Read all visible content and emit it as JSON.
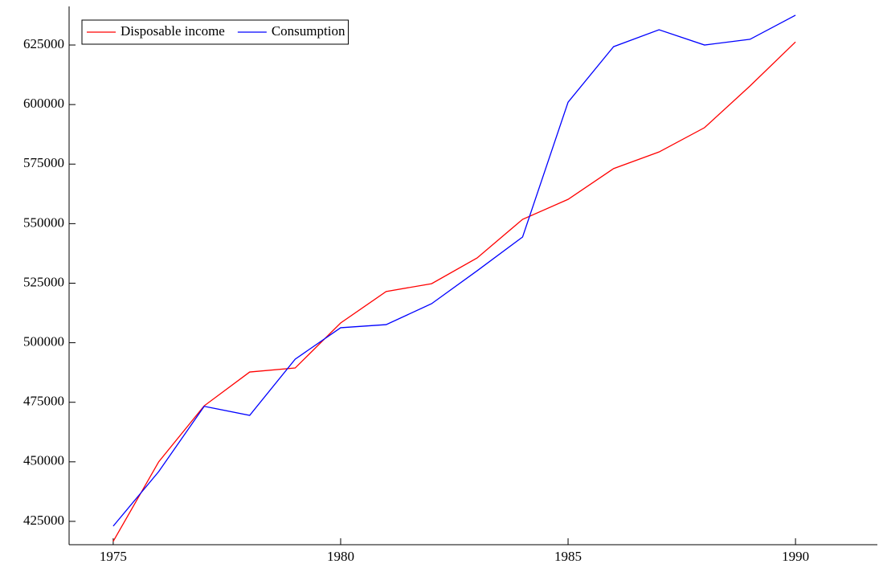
{
  "chart_data": {
    "type": "line",
    "x": [
      1975,
      1976,
      1977,
      1978,
      1979,
      1980,
      1981,
      1982,
      1983,
      1984,
      1985,
      1986,
      1987,
      1988,
      1989,
      1990
    ],
    "series": [
      {
        "name": "Disposable income",
        "color": "#ff0000",
        "values": [
          416600,
          450000,
          473500,
          487700,
          489400,
          508300,
          521500,
          524800,
          535600,
          551800,
          560200,
          573100,
          580100,
          590300,
          607800,
          626300
        ]
      },
      {
        "name": "Consumption",
        "color": "#0000ff",
        "values": [
          423000,
          445900,
          473300,
          469500,
          493100,
          506300,
          507600,
          516400,
          530200,
          544400,
          601000,
          624300,
          631400,
          625000,
          627400,
          637500
        ]
      }
    ],
    "xlim": [
      1974.03,
      1991.8
    ],
    "xticks": [
      1975,
      1980,
      1985,
      1990
    ],
    "ylim": [
      415200,
      641200
    ],
    "yticks": [
      425000,
      450000,
      475000,
      500000,
      525000,
      550000,
      575000,
      600000,
      625000
    ],
    "legend": "upper left"
  }
}
